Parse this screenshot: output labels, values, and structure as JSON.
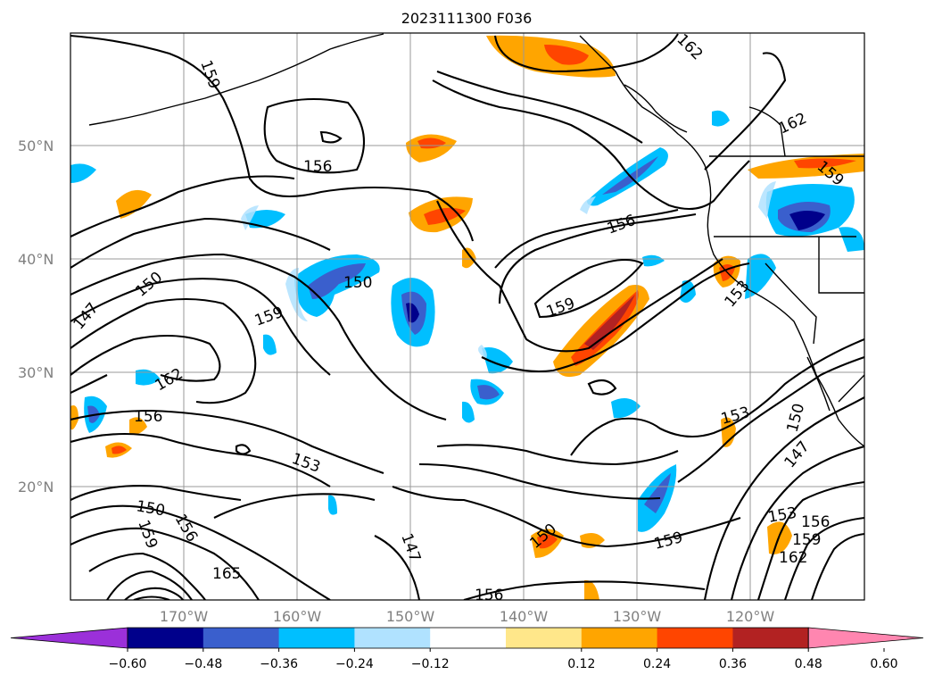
{
  "title": "2023111300 F036",
  "lat_ticks": [
    "50°N",
    "40°N",
    "30°N",
    "20°N"
  ],
  "lon_ticks": [
    "170°W",
    "160°W",
    "150°W",
    "140°W",
    "130°W",
    "120°W"
  ],
  "colorbar": {
    "labels": [
      "−0.60",
      "−0.48",
      "−0.36",
      "−0.24",
      "−0.12",
      "0.12",
      "0.24",
      "0.36",
      "0.48",
      "0.60"
    ],
    "colors": [
      "#9b30d9",
      "#00008b",
      "#3a5fcd",
      "#00bfff",
      "#b0e2ff",
      "#ffffff",
      "#ffe78a",
      "#ffa500",
      "#ff4500",
      "#b22222",
      "#ff86b0"
    ]
  },
  "contour_labels": [
    "159",
    "162",
    "156",
    "162",
    "159",
    "156",
    "150",
    "150",
    "159",
    "153",
    "147",
    "159",
    "162",
    "156",
    "153",
    "150",
    "153",
    "159",
    "156",
    "165",
    "147",
    "150",
    "159",
    "150",
    "153",
    "156",
    "159",
    "162",
    "147",
    "156"
  ]
}
